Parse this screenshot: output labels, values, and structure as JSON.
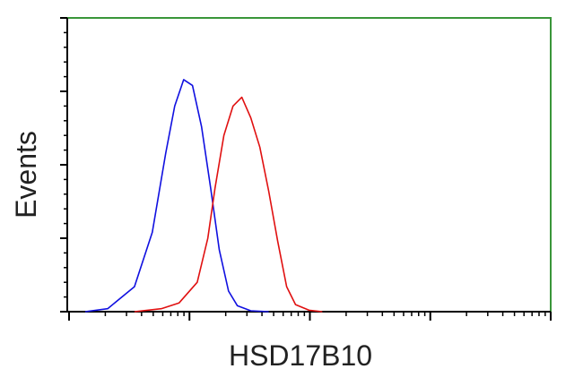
{
  "chart_data": {
    "type": "line",
    "xlabel": "HSD17B10",
    "ylabel": "Events",
    "xscale": "log",
    "xlim": [
      1,
      10000
    ],
    "xticks": [
      1,
      10,
      100,
      1000,
      10000
    ],
    "ylim": [
      0,
      100
    ],
    "yticks": [
      0,
      25,
      50,
      75,
      100
    ],
    "frame_color": "#3a963a",
    "series": [
      {
        "color": "#1010e0",
        "x": [
          1.36,
          2.09,
          3.49,
          4.91,
          6.35,
          7.54,
          8.95,
          10.6,
          12.6,
          15.0,
          17.7,
          21.1,
          25.0,
          32.3,
          45.5
        ],
        "values": [
          0,
          1,
          8.5,
          27,
          54,
          70,
          79,
          77,
          63,
          42,
          21,
          7,
          2,
          0.3,
          0
        ]
      },
      {
        "color": "#e01010",
        "x": [
          3.49,
          5.83,
          8.2,
          11.6,
          14.2,
          16.3,
          19.3,
          23.0,
          27.2,
          32.3,
          38.4,
          45.5,
          54.0,
          64.1,
          76.0,
          98.4,
          127
        ],
        "values": [
          0,
          1,
          3,
          10,
          25,
          42,
          60,
          70,
          73,
          66,
          56,
          41,
          24,
          8.5,
          2.4,
          0.5,
          0
        ]
      }
    ]
  }
}
